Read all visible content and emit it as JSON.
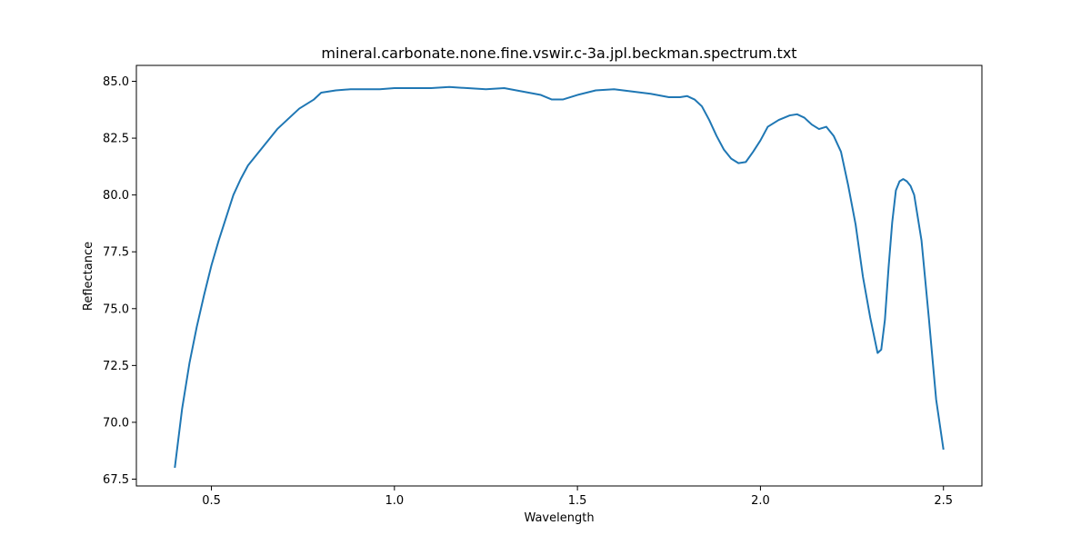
{
  "chart_data": {
    "type": "line",
    "title": "mineral.carbonate.none.fine.vswir.c-3a.jpl.beckman.spectrum.txt",
    "xlabel": "Wavelength",
    "ylabel": "Reflectance",
    "xlim": [
      0.295,
      2.605
    ],
    "ylim": [
      67.2,
      85.7
    ],
    "xticks": [
      0.5,
      1.0,
      1.5,
      2.0,
      2.5
    ],
    "xtick_labels": [
      "0.5",
      "1.0",
      "1.5",
      "2.0",
      "2.5"
    ],
    "yticks": [
      67.5,
      70.0,
      72.5,
      75.0,
      77.5,
      80.0,
      82.5,
      85.0
    ],
    "ytick_labels": [
      "67.5",
      "70.0",
      "72.5",
      "75.0",
      "77.5",
      "80.0",
      "82.5",
      "85.0"
    ],
    "grid": false,
    "series": [
      {
        "color": "#1f77b4",
        "x": [
          0.4,
          0.42,
          0.44,
          0.46,
          0.48,
          0.5,
          0.52,
          0.54,
          0.56,
          0.58,
          0.6,
          0.62,
          0.64,
          0.66,
          0.68,
          0.7,
          0.72,
          0.74,
          0.76,
          0.78,
          0.8,
          0.84,
          0.88,
          0.92,
          0.96,
          1.0,
          1.05,
          1.1,
          1.15,
          1.2,
          1.25,
          1.3,
          1.35,
          1.4,
          1.43,
          1.46,
          1.5,
          1.55,
          1.6,
          1.65,
          1.7,
          1.75,
          1.78,
          1.8,
          1.82,
          1.84,
          1.86,
          1.88,
          1.9,
          1.92,
          1.94,
          1.96,
          1.98,
          2.0,
          2.02,
          2.05,
          2.08,
          2.1,
          2.12,
          2.14,
          2.16,
          2.18,
          2.2,
          2.22,
          2.24,
          2.26,
          2.28,
          2.3,
          2.32,
          2.33,
          2.34,
          2.35,
          2.36,
          2.37,
          2.38,
          2.39,
          2.4,
          2.41,
          2.42,
          2.44,
          2.46,
          2.48,
          2.5
        ],
        "y": [
          68.0,
          70.6,
          72.6,
          74.2,
          75.6,
          76.9,
          78.0,
          79.0,
          80.0,
          80.7,
          81.3,
          81.7,
          82.1,
          82.5,
          82.9,
          83.2,
          83.5,
          83.8,
          84.0,
          84.2,
          84.5,
          84.6,
          84.65,
          84.65,
          84.65,
          84.7,
          84.7,
          84.7,
          84.75,
          84.7,
          84.65,
          84.7,
          84.55,
          84.4,
          84.2,
          84.2,
          84.4,
          84.6,
          84.65,
          84.55,
          84.45,
          84.3,
          84.3,
          84.35,
          84.2,
          83.9,
          83.3,
          82.6,
          82.0,
          81.6,
          81.4,
          81.45,
          81.9,
          82.4,
          83.0,
          83.3,
          83.5,
          83.55,
          83.4,
          83.1,
          82.9,
          83.0,
          82.6,
          81.9,
          80.4,
          78.7,
          76.4,
          74.6,
          73.05,
          73.2,
          74.5,
          76.8,
          78.8,
          80.2,
          80.6,
          80.7,
          80.6,
          80.4,
          80.0,
          78.0,
          74.6,
          71.0,
          68.8
        ]
      }
    ]
  }
}
